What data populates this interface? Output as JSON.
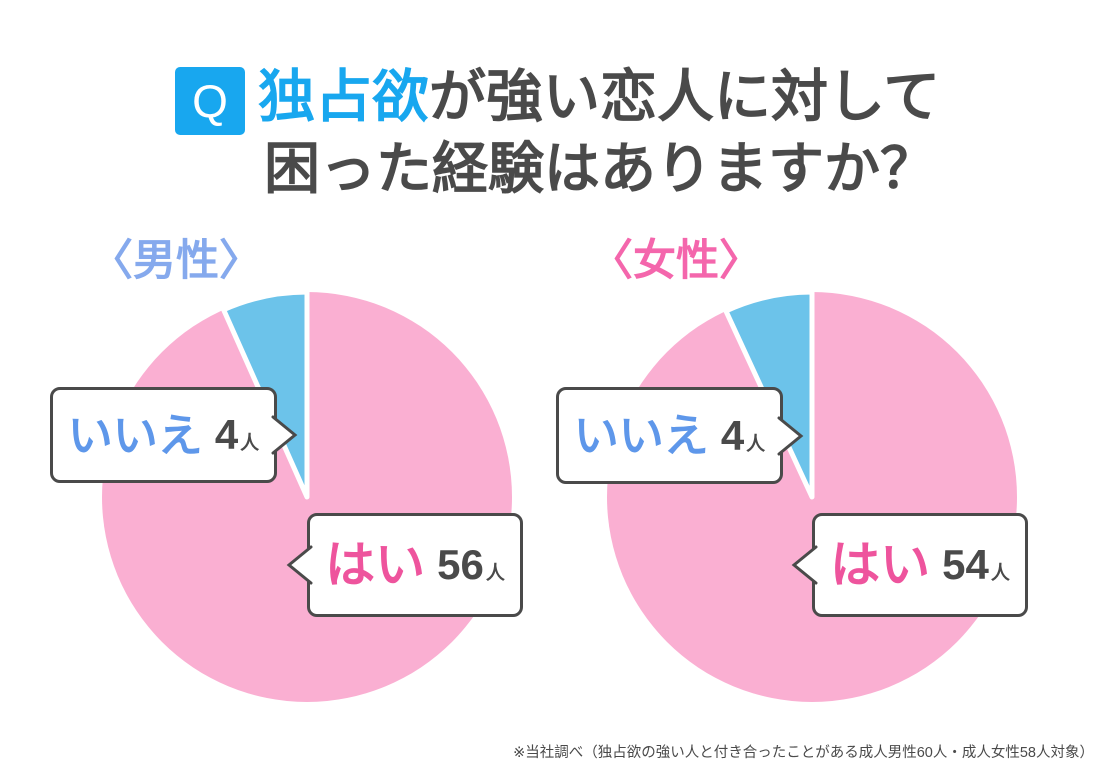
{
  "header": {
    "q_badge": "Q",
    "title_line1_highlight": "独占欲",
    "title_line1_rest": "が強い恋人に対して",
    "title_line2": "困った経験はありますか？"
  },
  "colors": {
    "accent_azure": "#18A7EF",
    "title_text": "#4A4A4A",
    "pie_yes_pink": "#FAAFD2",
    "pie_no_blue": "#6CC3EA",
    "callout_yes_label_pink": "#EE549D",
    "callout_no_label_blue": "#5E97EA",
    "heading_male_blue": "#85A9ED",
    "heading_female_pink": "#F466AC",
    "callout_border": "#4A4A4A",
    "slice_gap_white": "#ffffff"
  },
  "chart_data": [
    {
      "type": "pie",
      "group_label": "〈男性〉",
      "categories": [
        "はい",
        "いいえ"
      ],
      "values": [
        56,
        4
      ],
      "unit": "人",
      "slice_colors": [
        "#FAAFD2",
        "#6CC3EA"
      ],
      "layout": "no-wedge ends at 12 o'clock spanning counterclockwise; 5px white gap between slices; values shown in speech-bubble callouts"
    },
    {
      "type": "pie",
      "group_label": "〈女性〉",
      "categories": [
        "はい",
        "いいえ"
      ],
      "values": [
        54,
        4
      ],
      "unit": "人",
      "slice_colors": [
        "#FAAFD2",
        "#6CC3EA"
      ],
      "layout": "same as men chart"
    }
  ],
  "footer": {
    "note": "※当社調べ（独占欲の強い人と付き合ったことがある成人男性60人・成人女性58人対象）"
  }
}
